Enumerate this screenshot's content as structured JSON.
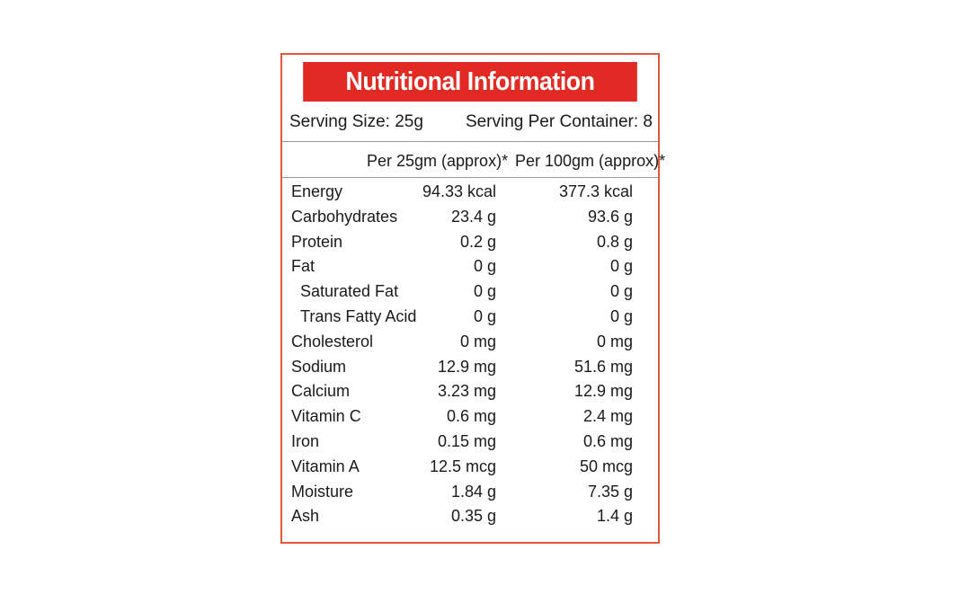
{
  "label": {
    "title": "Nutritional Information",
    "serving_size": "Serving Size: 25g",
    "servings_per_container": "Serving Per Container: 8",
    "column_headers": [
      "Per 25gm (approx)*",
      "Per 100gm (approx)*"
    ],
    "rows": [
      {
        "name": "Energy",
        "per_25gm": "94.33 kcal",
        "per_100gm": "377.3 kcal",
        "indent": false
      },
      {
        "name": "Carbohydrates",
        "per_25gm": "23.4 g",
        "per_100gm": "93.6 g",
        "indent": false
      },
      {
        "name": "Protein",
        "per_25gm": "0.2 g",
        "per_100gm": "0.8 g",
        "indent": false
      },
      {
        "name": "Fat",
        "per_25gm": "0 g",
        "per_100gm": "0 g",
        "indent": false
      },
      {
        "name": "Saturated Fat",
        "per_25gm": "0 g",
        "per_100gm": "0  g",
        "indent": true
      },
      {
        "name": "Trans Fatty Acid",
        "per_25gm": "0 g",
        "per_100gm": "0 g",
        "indent": true
      },
      {
        "name": "Cholesterol",
        "per_25gm": "0 mg",
        "per_100gm": "0 mg",
        "indent": false
      },
      {
        "name": "Sodium",
        "per_25gm": "12.9 mg",
        "per_100gm": "51.6 mg",
        "indent": false
      },
      {
        "name": "Calcium",
        "per_25gm": "3.23 mg",
        "per_100gm": "12.9 mg",
        "indent": false
      },
      {
        "name": "Vitamin C",
        "per_25gm": "0.6 mg",
        "per_100gm": "2.4 mg",
        "indent": false
      },
      {
        "name": "Iron",
        "per_25gm": "0.15 mg",
        "per_100gm": "0.6 mg",
        "indent": false
      },
      {
        "name": "Vitamin A",
        "per_25gm": "12.5 mcg",
        "per_100gm": "50 mcg",
        "indent": false
      },
      {
        "name": "Moisture",
        "per_25gm": "1.84 g",
        "per_100gm": "7.35 g",
        "indent": false
      },
      {
        "name": "Ash",
        "per_25gm": "0.35 g",
        "per_100gm": "1.4 g",
        "indent": false
      }
    ]
  },
  "colors": {
    "header_background": "#e02a23",
    "border": "#e2583e",
    "divider": "#9a9a9a"
  }
}
